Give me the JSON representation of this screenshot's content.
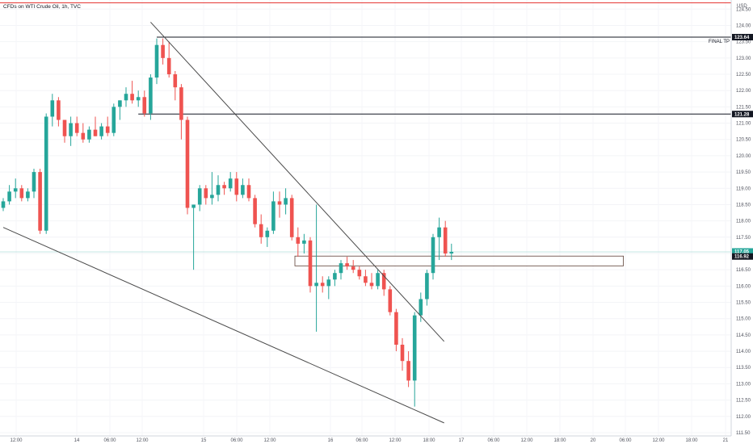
{
  "header": {
    "title": "CFDs on WTI Crude Oil, 1h, TVC"
  },
  "colors": {
    "up": "#26a69a",
    "down": "#ef5350",
    "trendline": "#4a4a4a",
    "level": "#131722",
    "top_line": "#e53935"
  },
  "chart_data": {
    "type": "candlestick",
    "title": "CFDs on WTI Crude Oil, 1h, TVC",
    "y_axis_label": "USD",
    "ylim": [
      111.4,
      124.78
    ],
    "y_ticks": [
      124.5,
      124.0,
      123.5,
      123.0,
      122.5,
      122.0,
      121.5,
      121.0,
      120.5,
      120.0,
      119.5,
      119.0,
      118.5,
      118.0,
      117.5,
      117.0,
      116.5,
      116.0,
      115.5,
      115.0,
      114.5,
      114.0,
      113.5,
      113.0,
      112.5,
      112.0,
      111.5
    ],
    "x_ticks": [
      "12:00",
      "14",
      "06:00",
      "12:00",
      "15",
      "06:00",
      "12:00",
      "16",
      "06:00",
      "12:00",
      "18:00",
      "17",
      "06:00",
      "12:00",
      "18:00",
      "20",
      "06:00",
      "12:00",
      "18:00",
      "21"
    ],
    "candles": [
      [
        118.4,
        118.7,
        118.3,
        118.6
      ],
      [
        118.6,
        119.1,
        118.5,
        118.9
      ],
      [
        118.9,
        119.3,
        118.7,
        119.0
      ],
      [
        119.0,
        119.1,
        118.6,
        118.7
      ],
      [
        118.7,
        119.0,
        118.6,
        118.9
      ],
      [
        118.9,
        119.6,
        118.7,
        119.5
      ],
      [
        119.5,
        119.6,
        117.6,
        117.7
      ],
      [
        117.7,
        121.3,
        117.6,
        121.2
      ],
      [
        121.2,
        121.9,
        120.9,
        121.7
      ],
      [
        121.7,
        121.8,
        120.9,
        121.1
      ],
      [
        121.1,
        121.1,
        120.4,
        120.6
      ],
      [
        120.6,
        121.2,
        120.3,
        121.0
      ],
      [
        121.0,
        121.2,
        120.6,
        120.7
      ],
      [
        120.7,
        121.0,
        120.4,
        120.5
      ],
      [
        120.5,
        120.9,
        120.4,
        120.8
      ],
      [
        120.8,
        121.2,
        120.6,
        120.6
      ],
      [
        120.6,
        121.0,
        120.5,
        120.9
      ],
      [
        120.9,
        121.2,
        120.6,
        120.7
      ],
      [
        120.7,
        121.6,
        120.6,
        121.5
      ],
      [
        121.5,
        121.7,
        121.1,
        121.7
      ],
      [
        121.7,
        122.1,
        121.5,
        121.9
      ],
      [
        121.9,
        122.3,
        121.6,
        121.7
      ],
      [
        121.7,
        122.0,
        121.5,
        121.8
      ],
      [
        121.8,
        122.0,
        121.2,
        121.3
      ],
      [
        121.3,
        122.5,
        121.1,
        122.4
      ],
      [
        122.4,
        123.6,
        122.2,
        123.4
      ],
      [
        123.4,
        123.6,
        122.8,
        123.0
      ],
      [
        123.0,
        123.5,
        122.4,
        122.5
      ],
      [
        122.5,
        122.6,
        121.7,
        122.1
      ],
      [
        122.1,
        122.2,
        120.5,
        121.1
      ],
      [
        121.1,
        121.2,
        118.2,
        118.4
      ],
      [
        118.4,
        118.5,
        116.5,
        118.5
      ],
      [
        118.5,
        119.1,
        118.3,
        119.0
      ],
      [
        119.0,
        119.1,
        118.5,
        118.7
      ],
      [
        118.7,
        119.5,
        118.5,
        118.8
      ],
      [
        118.8,
        119.4,
        118.6,
        119.1
      ],
      [
        119.1,
        119.2,
        118.8,
        119.0
      ],
      [
        119.0,
        119.5,
        118.9,
        119.3
      ],
      [
        119.3,
        119.5,
        118.6,
        118.8
      ],
      [
        118.8,
        119.3,
        118.7,
        119.1
      ],
      [
        119.1,
        119.3,
        118.6,
        118.7
      ],
      [
        118.7,
        118.8,
        117.8,
        117.9
      ],
      [
        117.9,
        118.2,
        117.3,
        117.5
      ],
      [
        117.5,
        117.8,
        117.2,
        117.7
      ],
      [
        117.7,
        118.9,
        117.6,
        118.6
      ],
      [
        118.6,
        118.9,
        118.1,
        118.5
      ],
      [
        118.5,
        119.0,
        118.2,
        118.7
      ],
      [
        118.7,
        118.8,
        117.4,
        117.5
      ],
      [
        117.5,
        117.8,
        116.9,
        117.3
      ],
      [
        117.3,
        117.6,
        117.0,
        117.4
      ],
      [
        117.4,
        117.5,
        115.8,
        116.0
      ],
      [
        116.0,
        118.5,
        114.6,
        116.1
      ],
      [
        116.1,
        116.3,
        115.8,
        116.0
      ],
      [
        116.0,
        116.3,
        115.6,
        116.2
      ],
      [
        116.2,
        116.5,
        116.0,
        116.4
      ],
      [
        116.4,
        116.8,
        116.2,
        116.7
      ],
      [
        116.7,
        116.9,
        116.5,
        116.6
      ],
      [
        116.6,
        116.8,
        116.4,
        116.5
      ],
      [
        116.5,
        116.6,
        116.2,
        116.3
      ],
      [
        116.3,
        116.5,
        116.0,
        116.1
      ],
      [
        116.1,
        116.4,
        115.9,
        116.0
      ],
      [
        116.0,
        116.5,
        115.9,
        116.4
      ],
      [
        116.4,
        116.5,
        115.7,
        115.9
      ],
      [
        115.9,
        116.0,
        115.1,
        115.2
      ],
      [
        115.2,
        115.3,
        114.0,
        114.2
      ],
      [
        114.2,
        114.4,
        113.4,
        113.7
      ],
      [
        113.7,
        114.0,
        112.9,
        113.1
      ],
      [
        113.1,
        115.2,
        112.3,
        115.1
      ],
      [
        115.1,
        115.8,
        114.9,
        115.6
      ],
      [
        115.6,
        116.5,
        115.4,
        116.4
      ],
      [
        116.4,
        117.6,
        116.2,
        117.5
      ],
      [
        117.5,
        118.1,
        116.8,
        117.8
      ],
      [
        117.8,
        118.0,
        116.9,
        117.0
      ],
      [
        117.0,
        117.3,
        116.8,
        117.05
      ]
    ],
    "trendlines": [
      {
        "name": "descending-resistance",
        "x1": 24.0,
        "y1": 124.1,
        "x2": 71.8,
        "y2": 114.3
      },
      {
        "name": "lower-support",
        "x1": 0.0,
        "y1": 117.8,
        "x2": 71.8,
        "y2": 111.8
      }
    ],
    "levels": [
      {
        "name": "final-tp",
        "price": 123.64,
        "price_label": "123.64",
        "annotation": "FINAL TP",
        "x_start": 25
      },
      {
        "name": "mid-resistance",
        "price": 121.28,
        "price_label": "121.28",
        "annotation": "",
        "x_start": 22
      }
    ],
    "current_price": {
      "price": 117.05,
      "label": "117.05"
    },
    "zone": {
      "name": "entry-zone",
      "top": 116.92,
      "bottom": 116.62,
      "x_start": 47.5,
      "x_end": 101.0,
      "label": "116.92"
    }
  }
}
